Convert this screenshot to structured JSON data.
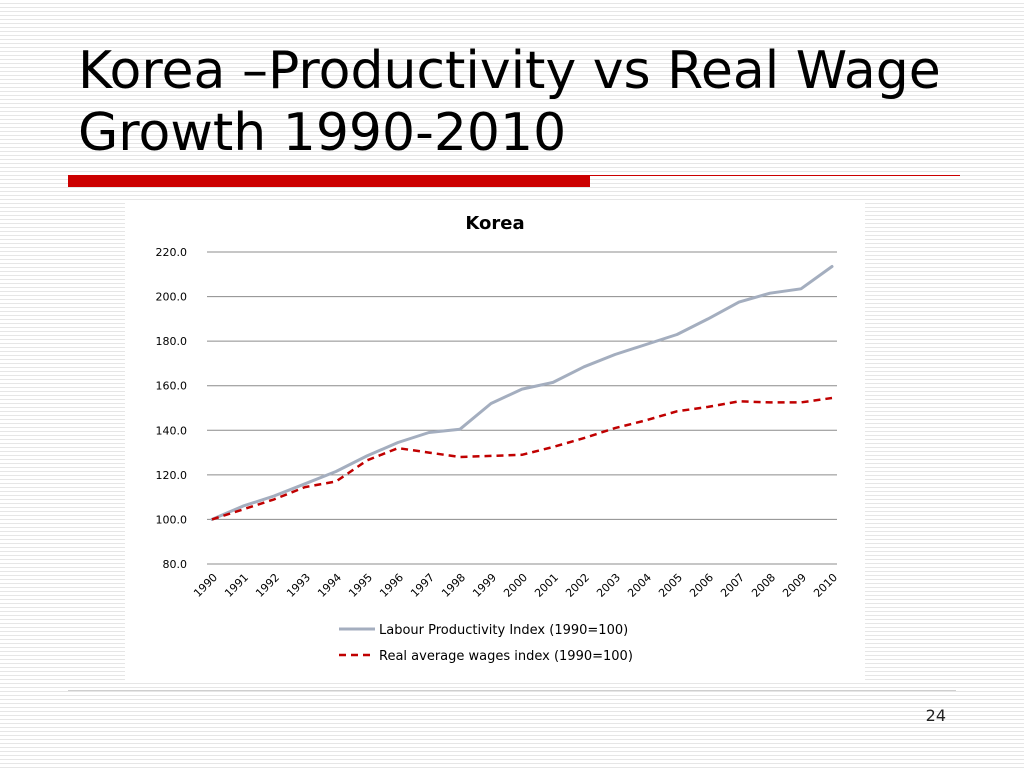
{
  "slide": {
    "title": "Korea –Productivity vs Real Wage Growth 1990-2010",
    "page_number": "24",
    "accent_color": "#cc0000",
    "rule_color": "#cc0000"
  },
  "chart_data": {
    "type": "line",
    "title": "Korea",
    "xlabel": "",
    "ylabel": "",
    "categories": [
      "1990",
      "1991",
      "1992",
      "1993",
      "1994",
      "1995",
      "1996",
      "1997",
      "1998",
      "1999",
      "2000",
      "2001",
      "2002",
      "2003",
      "2004",
      "2005",
      "2006",
      "2007",
      "2008",
      "2009",
      "2010"
    ],
    "yticks": [
      "80.0",
      "100.0",
      "120.0",
      "140.0",
      "160.0",
      "180.0",
      "200.0",
      "220.0"
    ],
    "ylim": [
      80,
      220
    ],
    "grid": true,
    "legend_position": "bottom",
    "series": [
      {
        "name": "Labour Productivity Index (1990=100)",
        "color": "#a4aebf",
        "dash": "solid",
        "values": [
          100.0,
          106.0,
          110.5,
          116.0,
          121.5,
          128.5,
          134.5,
          139.0,
          140.5,
          152.0,
          158.5,
          161.5,
          168.5,
          174.0,
          178.5,
          183.0,
          190.0,
          197.5,
          201.5,
          203.5,
          213.5
        ]
      },
      {
        "name": "Real average wages index (1990=100)",
        "color": "#c00000",
        "dash": "dashed",
        "values": [
          100.0,
          104.5,
          109.0,
          114.5,
          117.0,
          126.5,
          132.0,
          130.0,
          128.0,
          128.5,
          129.0,
          132.5,
          136.5,
          141.0,
          144.5,
          148.5,
          150.5,
          153.0,
          152.5,
          152.5,
          154.5
        ]
      }
    ]
  }
}
